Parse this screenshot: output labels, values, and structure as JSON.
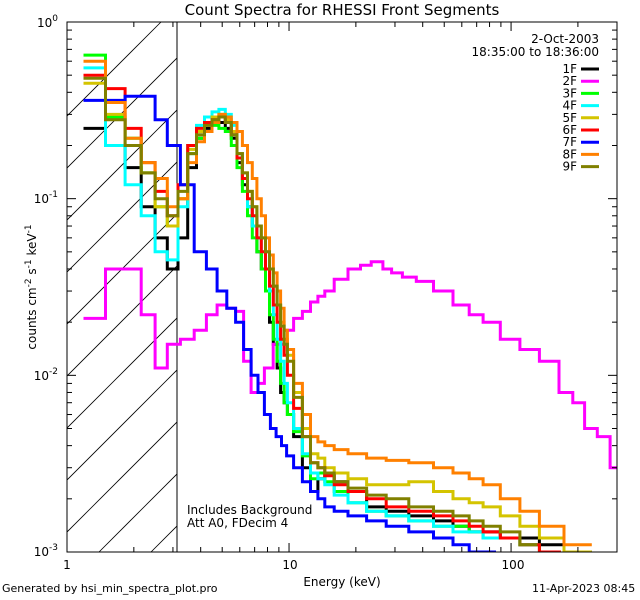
{
  "chart_data": {
    "type": "line",
    "title": "Count Spectra for RHESSI Front Segments",
    "xlabel": "Energy (keV)",
    "ylabel_parts": [
      "counts cm",
      "-2",
      " s",
      "-1",
      " keV",
      "-1"
    ],
    "xscale": "log",
    "yscale": "log",
    "xlim": [
      1,
      300
    ],
    "ylim": [
      0.001,
      1
    ],
    "x_ticks": [
      {
        "value": 1,
        "label": "1"
      },
      {
        "value": 10,
        "label": "10"
      },
      {
        "value": 100,
        "label": "100"
      }
    ],
    "y_ticks": [
      {
        "value": 0.001,
        "base": "10",
        "exp": "-3"
      },
      {
        "value": 0.01,
        "base": "10",
        "exp": "-2"
      },
      {
        "value": 0.1,
        "base": "10",
        "exp": "-1"
      },
      {
        "value": 1,
        "base": "10",
        "exp": "0"
      }
    ],
    "date": "2-Oct-2003",
    "time_range": "18:35:00 to 18:36:00",
    "annotations": [
      "Includes Background",
      "Att A0, FDecim 4"
    ],
    "shaded_region": {
      "x_from": 1,
      "x_to": 3,
      "pattern": "diagonal hatch"
    },
    "legend_position": "top-right",
    "series": [
      {
        "name": "1F",
        "color": "#000000",
        "energies": [
          1.33,
          1.67,
          2,
          2.33,
          2.67,
          3,
          3.33,
          3.67,
          4,
          4.33,
          4.67,
          5,
          5.33,
          5.67,
          6,
          6.33,
          6.67,
          7,
          7.33,
          7.67,
          8,
          8.33,
          8.67,
          9,
          9.33,
          9.67,
          10,
          11,
          12,
          13,
          14,
          15,
          17,
          20,
          25,
          30,
          40,
          50,
          60,
          70,
          80,
          100,
          120,
          150,
          200
        ],
        "values": [
          0.25,
          0.2,
          0.15,
          0.09,
          0.06,
          0.04,
          0.06,
          0.15,
          0.22,
          0.25,
          0.28,
          0.27,
          0.25,
          0.22,
          0.16,
          0.12,
          0.09,
          0.07,
          0.05,
          0.04,
          0.03,
          0.02,
          0.015,
          0.011,
          0.008,
          0.007,
          0.006,
          0.0045,
          0.003,
          0.0022,
          0.0026,
          0.0028,
          0.0025,
          0.0022,
          0.0018,
          0.0017,
          0.0016,
          0.0015,
          0.0014,
          0.0013,
          0.0013,
          0.0012,
          0.0012,
          0.0011,
          0.001
        ]
      },
      {
        "name": "2F",
        "color": "#ff00ff",
        "energies": [
          1.33,
          1.67,
          2,
          2.33,
          2.67,
          3,
          3.5,
          4,
          4.5,
          5,
          5.5,
          6,
          6.5,
          7,
          7.5,
          8,
          9,
          10,
          11,
          12,
          13,
          14,
          15,
          17,
          20,
          22,
          25,
          28,
          30,
          35,
          40,
          50,
          60,
          70,
          80,
          100,
          120,
          150,
          180,
          200,
          230,
          260,
          300
        ],
        "values": [
          0.021,
          0.04,
          0.04,
          0.022,
          0.011,
          0.015,
          0.016,
          0.018,
          0.022,
          0.025,
          0.024,
          0.023,
          0.012,
          0.008,
          0.009,
          0.011,
          0.015,
          0.018,
          0.021,
          0.023,
          0.026,
          0.028,
          0.03,
          0.035,
          0.04,
          0.042,
          0.044,
          0.04,
          0.038,
          0.036,
          0.034,
          0.03,
          0.025,
          0.022,
          0.02,
          0.016,
          0.014,
          0.012,
          0.008,
          0.007,
          0.005,
          0.0045,
          0.003
        ]
      },
      {
        "name": "3F",
        "color": "#00ff00",
        "energies": [
          1.33,
          1.67,
          2,
          2.33,
          2.67,
          3,
          3.33,
          3.67,
          4,
          4.33,
          4.67,
          5,
          5.33,
          5.67,
          6,
          6.33,
          6.67,
          7,
          7.33,
          7.67,
          8,
          8.33,
          8.67,
          9,
          9.33,
          9.67,
          10,
          11,
          12,
          13,
          14,
          15,
          17,
          20,
          25,
          30,
          40,
          50,
          60,
          70,
          80,
          100,
          120,
          150
        ],
        "values": [
          0.65,
          0.29,
          0.22,
          0.14,
          0.09,
          0.07,
          0.1,
          0.18,
          0.22,
          0.24,
          0.26,
          0.25,
          0.24,
          0.2,
          0.15,
          0.11,
          0.08,
          0.06,
          0.05,
          0.04,
          0.03,
          0.022,
          0.016,
          0.012,
          0.009,
          0.007,
          0.006,
          0.0048,
          0.0035,
          0.0026,
          0.0028,
          0.0025,
          0.0022,
          0.0019,
          0.0017,
          0.0016,
          0.0015,
          0.0014,
          0.0014,
          0.0013,
          0.0012,
          0.0012,
          0.0011,
          0.001
        ]
      },
      {
        "name": "4F",
        "color": "#00ffff",
        "energies": [
          1.33,
          1.67,
          2,
          2.33,
          2.67,
          3,
          3.33,
          3.67,
          4,
          4.33,
          4.67,
          5,
          5.33,
          5.67,
          6,
          6.33,
          6.67,
          7,
          7.33,
          7.67,
          8,
          8.33,
          8.67,
          9,
          9.33,
          9.67,
          10,
          11,
          12,
          13,
          14,
          15,
          17,
          20,
          25,
          30,
          40,
          50,
          60,
          70,
          80,
          100,
          120
        ],
        "values": [
          0.55,
          0.2,
          0.12,
          0.08,
          0.05,
          0.045,
          0.09,
          0.2,
          0.26,
          0.29,
          0.31,
          0.32,
          0.3,
          0.26,
          0.18,
          0.13,
          0.09,
          0.07,
          0.06,
          0.05,
          0.04,
          0.03,
          0.022,
          0.016,
          0.012,
          0.009,
          0.007,
          0.005,
          0.0036,
          0.0028,
          0.0026,
          0.0024,
          0.0021,
          0.0019,
          0.0017,
          0.0016,
          0.0015,
          0.0014,
          0.0013,
          0.0013,
          0.0012,
          0.0012,
          0.0011
        ]
      },
      {
        "name": "5F",
        "color": "#d4c400",
        "energies": [
          1.33,
          1.67,
          2,
          2.33,
          2.67,
          3,
          3.33,
          3.67,
          4,
          4.33,
          4.67,
          5,
          5.33,
          5.67,
          6,
          6.33,
          6.67,
          7,
          7.33,
          7.67,
          8,
          8.33,
          8.67,
          9,
          9.33,
          9.67,
          10,
          11,
          12,
          13,
          14,
          15,
          17,
          20,
          25,
          30,
          40,
          50,
          60,
          70,
          80,
          100,
          120,
          150,
          200
        ],
        "values": [
          0.45,
          0.3,
          0.2,
          0.14,
          0.09,
          0.07,
          0.1,
          0.19,
          0.24,
          0.27,
          0.29,
          0.3,
          0.28,
          0.24,
          0.18,
          0.14,
          0.11,
          0.09,
          0.07,
          0.06,
          0.05,
          0.04,
          0.032,
          0.025,
          0.02,
          0.016,
          0.013,
          0.008,
          0.005,
          0.0036,
          0.0034,
          0.003,
          0.0028,
          0.0026,
          0.0024,
          0.0024,
          0.0025,
          0.0022,
          0.002,
          0.0019,
          0.0018,
          0.0016,
          0.0014,
          0.0012,
          0.001
        ]
      },
      {
        "name": "6F",
        "color": "#ff0000",
        "energies": [
          1.33,
          1.67,
          2,
          2.33,
          2.67,
          3,
          3.33,
          3.67,
          4,
          4.33,
          4.67,
          5,
          5.33,
          5.67,
          6,
          6.33,
          6.67,
          7,
          7.33,
          7.67,
          8,
          8.33,
          8.67,
          9,
          9.33,
          9.67,
          10,
          11,
          12,
          13,
          14,
          15,
          17,
          20,
          25,
          30,
          40,
          50,
          60,
          70,
          80,
          100,
          120,
          150
        ],
        "values": [
          0.5,
          0.42,
          0.25,
          0.16,
          0.11,
          0.08,
          0.12,
          0.2,
          0.25,
          0.27,
          0.28,
          0.29,
          0.27,
          0.23,
          0.17,
          0.13,
          0.1,
          0.08,
          0.06,
          0.05,
          0.04,
          0.032,
          0.025,
          0.02,
          0.016,
          0.013,
          0.01,
          0.0065,
          0.0045,
          0.0032,
          0.003,
          0.0027,
          0.0024,
          0.0022,
          0.002,
          0.0018,
          0.0017,
          0.0016,
          0.0015,
          0.0014,
          0.0013,
          0.0012,
          0.0011,
          0.001
        ]
      },
      {
        "name": "7F",
        "color": "#0000ff",
        "energies": [
          1.33,
          1.67,
          2,
          2.33,
          2.67,
          3,
          3.5,
          4,
          4.5,
          5,
          5.5,
          6,
          6.5,
          7,
          7.5,
          8,
          8.5,
          9,
          9.5,
          10,
          11,
          12,
          13,
          14,
          15,
          17,
          20,
          25,
          30,
          40,
          50,
          60,
          70,
          80
        ],
        "values": [
          0.36,
          0.36,
          0.38,
          0.38,
          0.28,
          0.2,
          0.12,
          0.05,
          0.04,
          0.03,
          0.024,
          0.02,
          0.014,
          0.01,
          0.008,
          0.006,
          0.005,
          0.0045,
          0.004,
          0.0035,
          0.003,
          0.0025,
          0.0022,
          0.002,
          0.0018,
          0.0017,
          0.0016,
          0.0015,
          0.0014,
          0.0013,
          0.0012,
          0.0011,
          0.001,
          0.001
        ]
      },
      {
        "name": "8F",
        "color": "#ff8000",
        "energies": [
          1.33,
          1.67,
          2,
          2.33,
          2.67,
          3,
          3.33,
          3.67,
          4,
          4.33,
          4.67,
          5,
          5.33,
          5.67,
          6,
          6.33,
          6.67,
          7,
          7.33,
          7.67,
          8,
          8.33,
          8.67,
          9,
          9.33,
          9.67,
          10,
          11,
          12,
          13,
          14,
          15,
          17,
          20,
          25,
          30,
          40,
          50,
          60,
          70,
          80,
          100,
          120,
          150,
          200
        ],
        "values": [
          0.6,
          0.35,
          0.22,
          0.16,
          0.13,
          0.09,
          0.1,
          0.16,
          0.21,
          0.24,
          0.27,
          0.3,
          0.29,
          0.27,
          0.24,
          0.2,
          0.16,
          0.13,
          0.1,
          0.08,
          0.06,
          0.048,
          0.038,
          0.03,
          0.024,
          0.018,
          0.014,
          0.009,
          0.006,
          0.0045,
          0.0042,
          0.004,
          0.0038,
          0.0036,
          0.0034,
          0.0033,
          0.0032,
          0.003,
          0.0028,
          0.0026,
          0.0024,
          0.002,
          0.0017,
          0.0014,
          0.0011
        ]
      },
      {
        "name": "9F",
        "color": "#808000",
        "energies": [
          1.33,
          1.67,
          2,
          2.33,
          2.67,
          3,
          3.33,
          3.67,
          4,
          4.33,
          4.67,
          5,
          5.33,
          5.67,
          6,
          6.33,
          6.67,
          7,
          7.33,
          7.67,
          8,
          8.33,
          8.67,
          9,
          9.33,
          9.67,
          10,
          11,
          12,
          13,
          14,
          15,
          17,
          20,
          25,
          30,
          40,
          50,
          60,
          70,
          80,
          100,
          120
        ],
        "values": [
          0.48,
          0.28,
          0.2,
          0.14,
          0.1,
          0.08,
          0.11,
          0.18,
          0.23,
          0.26,
          0.28,
          0.29,
          0.27,
          0.23,
          0.18,
          0.14,
          0.11,
          0.09,
          0.07,
          0.06,
          0.05,
          0.04,
          0.032,
          0.025,
          0.019,
          0.015,
          0.012,
          0.0075,
          0.0045,
          0.0032,
          0.003,
          0.0028,
          0.0025,
          0.0023,
          0.0021,
          0.002,
          0.0018,
          0.0017,
          0.0016,
          0.0015,
          0.0014,
          0.0013,
          0.0011
        ]
      }
    ]
  },
  "footer": {
    "generated_by": "Generated by hsi_min_spectra_plot.pro",
    "timestamp": "11-Apr-2023 08:45"
  }
}
